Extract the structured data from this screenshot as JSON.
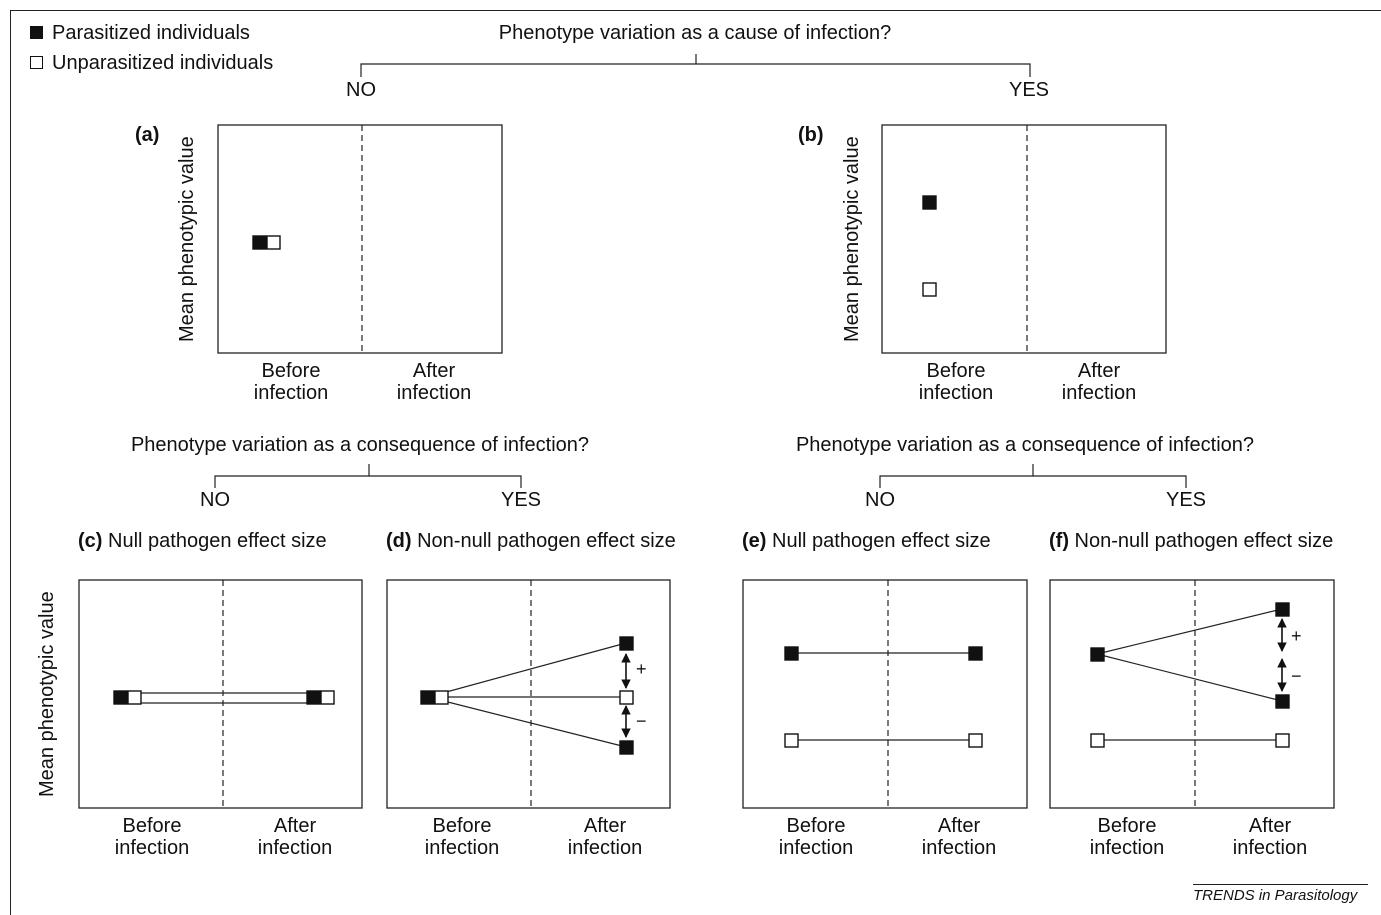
{
  "legend": {
    "parasitized": "Parasitized individuals",
    "unparasitized": "Unparasitized individuals"
  },
  "top_question": {
    "question": "Phenotype variation as a cause of infection?",
    "no": "NO",
    "yes": "YES"
  },
  "left_question": {
    "question": "Phenotype variation as a consequence of infection?",
    "no": "NO",
    "yes": "YES"
  },
  "right_question": {
    "question": "Phenotype variation as a consequence of infection?",
    "no": "NO",
    "yes": "YES"
  },
  "y_axis_label": "Mean phenotypic value",
  "x_labels": {
    "before_1": "Before",
    "before_2": "infection",
    "after_1": "After",
    "after_2": "infection"
  },
  "panels": {
    "a": {
      "letter": "(a)",
      "title": ""
    },
    "b": {
      "letter": "(b)",
      "title": ""
    },
    "c": {
      "letter": "(c)",
      "title": " Null pathogen effect size"
    },
    "d": {
      "letter": "(d)",
      "title": " Non-null pathogen effect size"
    },
    "e": {
      "letter": "(e)",
      "title": " Null pathogen effect size"
    },
    "f": {
      "letter": "(f)",
      "title": " Non-null pathogen effect size"
    }
  },
  "signs": {
    "plus": "+",
    "minus": "−"
  },
  "footer": "TRENDS in Parasitology"
}
